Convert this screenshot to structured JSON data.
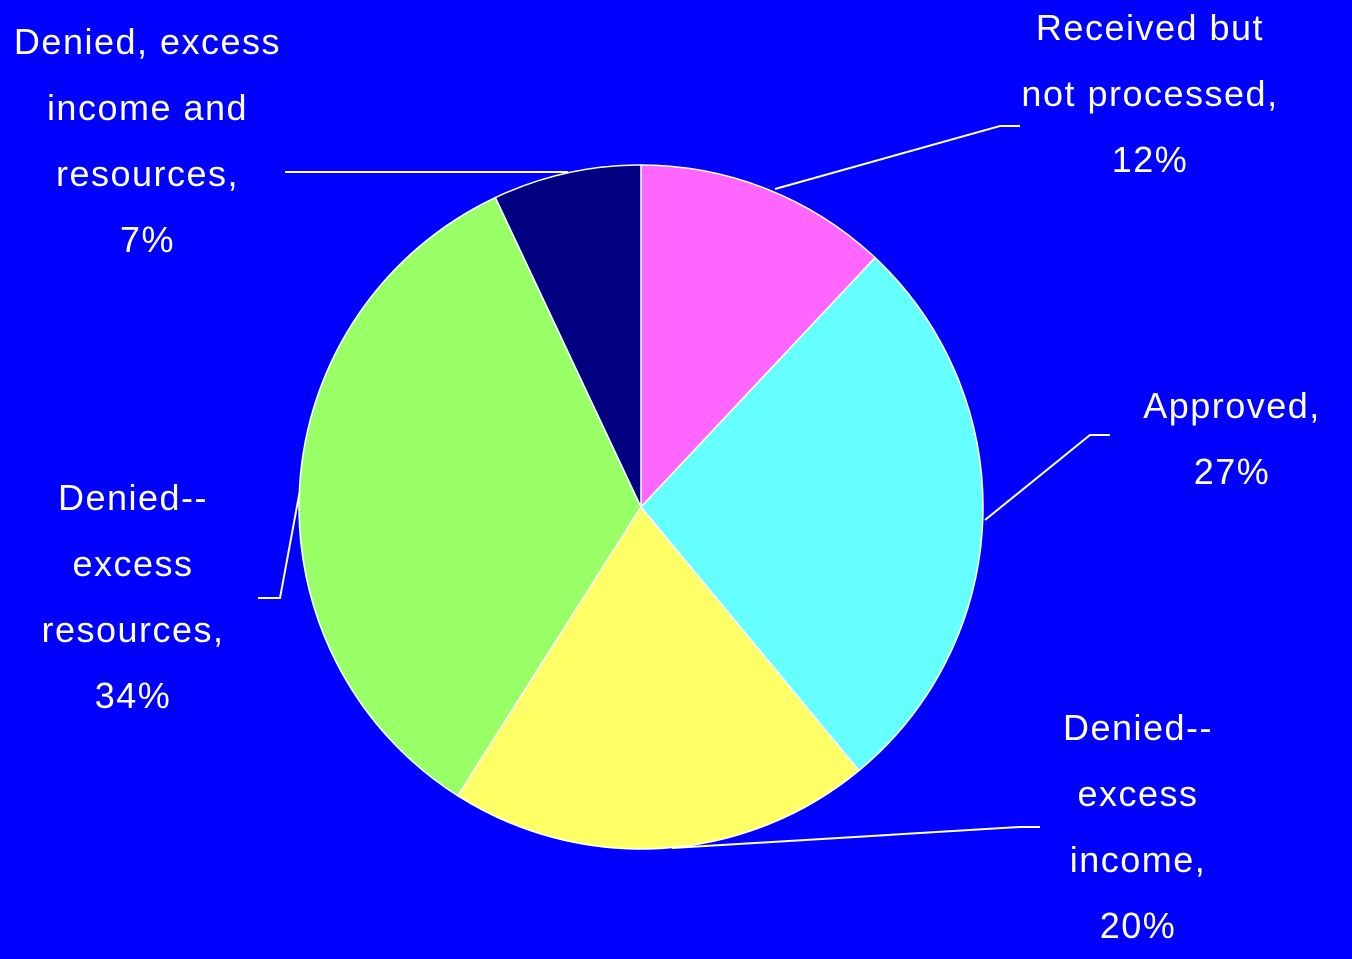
{
  "chart_data": {
    "type": "pie",
    "categories": [
      "Received but not processed,",
      "Approved,",
      "Denied--excess income,",
      "Denied--excess resources,",
      "Denied, excess income and resources,"
    ],
    "values": [
      12,
      27,
      20,
      34,
      7
    ],
    "value_labels": [
      "12%",
      "27%",
      "20%",
      "34%",
      "7%"
    ],
    "colors": [
      "#ff66ff",
      "#66ffff",
      "#ffff66",
      "#99ff66",
      "#000080"
    ]
  }
}
